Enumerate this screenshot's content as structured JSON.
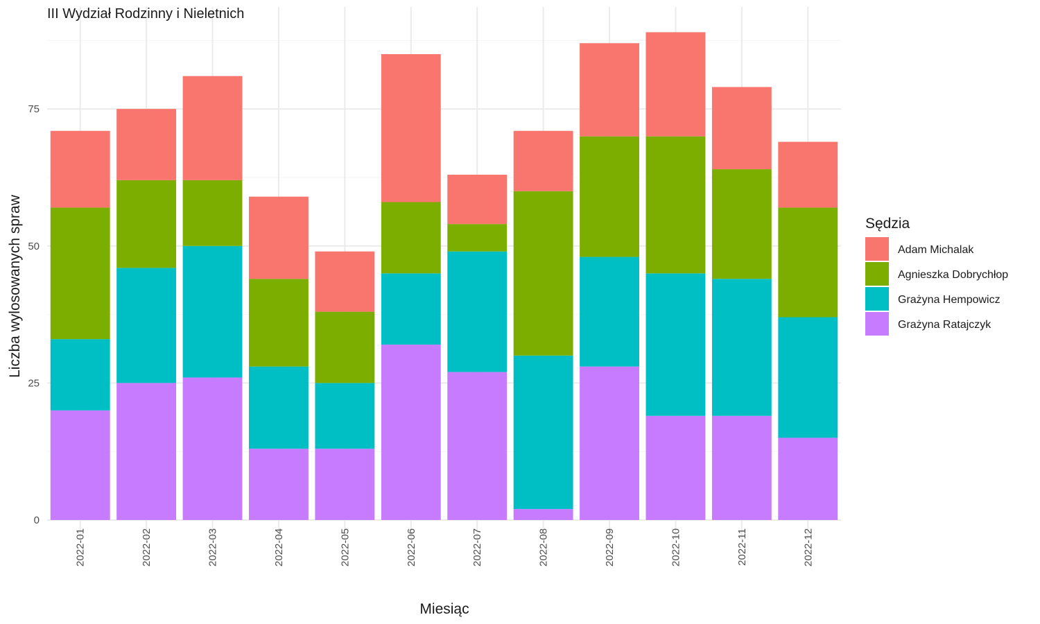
{
  "chart_data": {
    "type": "bar",
    "stacked": true,
    "title": "III Wydział Rodzinny i Nieletnich",
    "xlabel": "Miesiąc",
    "ylabel": "Liczba wylosowanych spraw",
    "ylim": [
      0,
      90
    ],
    "yticks": [
      0,
      25,
      50,
      75
    ],
    "grid": true,
    "legend_title": "Sędzia",
    "legend_position": "right",
    "categories": [
      "2022-01",
      "2022-02",
      "2022-03",
      "2022-04",
      "2022-05",
      "2022-06",
      "2022-07",
      "2022-08",
      "2022-09",
      "2022-10",
      "2022-11",
      "2022-12"
    ],
    "series": [
      {
        "name": "Grażyna Ratajczyk",
        "color": "#C77CFF",
        "values": [
          20,
          25,
          26,
          13,
          13,
          32,
          27,
          2,
          28,
          19,
          19,
          15
        ]
      },
      {
        "name": "Grażyna Hempowicz",
        "color": "#00BFC4",
        "values": [
          13,
          21,
          24,
          15,
          12,
          13,
          22,
          28,
          20,
          26,
          25,
          22
        ]
      },
      {
        "name": "Agnieszka Dobrychłop",
        "color": "#7CAE00",
        "values": [
          24,
          16,
          12,
          16,
          13,
          13,
          5,
          30,
          22,
          25,
          20,
          20
        ]
      },
      {
        "name": "Adam Michalak",
        "color": "#F8766D",
        "values": [
          14,
          13,
          19,
          15,
          11,
          27,
          9,
          11,
          17,
          19,
          15,
          12
        ]
      }
    ],
    "legend_order": [
      "Adam Michalak",
      "Agnieszka Dobrychłop",
      "Grażyna Hempowicz",
      "Grażyna Ratajczyk"
    ]
  }
}
